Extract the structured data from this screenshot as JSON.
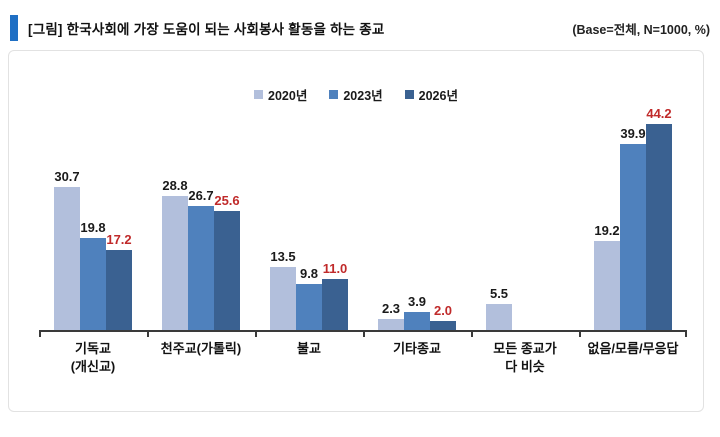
{
  "header": {
    "title": "[그림] 한국사회에 가장 도움이 되는 사회봉사 활동을 하는 종교",
    "base_note": "(Base=전체, N=1000, %)",
    "accent_color": "#1f6fc4"
  },
  "chart_data": {
    "type": "bar",
    "title": "[그림] 한국사회에 가장 도움이 되는 사회봉사 활동을 하는 종교",
    "subtitle": "(Base=전체, N=1000, %)",
    "categories": [
      "기독교\n(개신교)",
      "천주교(가톨릭)",
      "불교",
      "기타종교",
      "모든 종교가\n다 비슷",
      "없음/모름/무응답"
    ],
    "series": [
      {
        "name": "2020년",
        "color": "#b2bfdc",
        "label_color": "#1a1a1a",
        "values": [
          30.7,
          28.8,
          13.5,
          2.3,
          5.5,
          19.2
        ]
      },
      {
        "name": "2023년",
        "color": "#4f81bd",
        "label_color": "#1a1a1a",
        "values": [
          19.8,
          26.7,
          9.8,
          3.9,
          null,
          39.9
        ]
      },
      {
        "name": "2026년",
        "color": "#3a6191",
        "label_color": "#c02a2a",
        "values": [
          17.2,
          25.6,
          11.0,
          2.0,
          null,
          44.2
        ]
      }
    ],
    "ylim": [
      0,
      47
    ],
    "ylabel": "",
    "xlabel": "",
    "grid": false,
    "y_axis_visible": false,
    "legend_position": "top",
    "value_labels": "shown above bars, one decimal; 2026년 labels in red"
  }
}
